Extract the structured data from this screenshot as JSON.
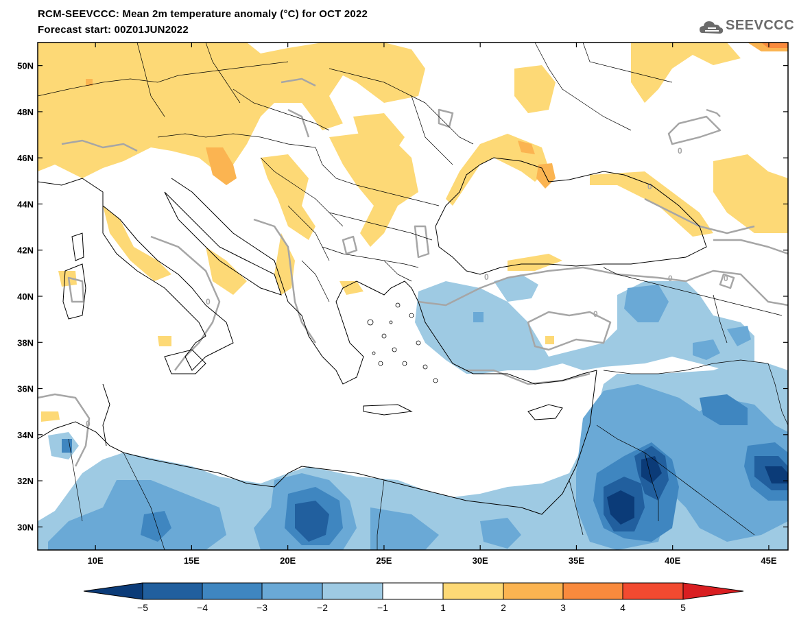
{
  "header": {
    "title": "RCM-SEEVCCC: Mean 2m temperature anomaly (°C) for OCT 2022",
    "subtitle": "Forecast start: 00Z01JUN2022",
    "logo_text": "SEEVCCC"
  },
  "map": {
    "region": "Southeastern Europe and Eastern Mediterranean",
    "lon_range": [
      7,
      46
    ],
    "lat_range": [
      29,
      51
    ],
    "lon_ticks": [
      "10E",
      "15E",
      "20E",
      "25E",
      "30E",
      "35E",
      "40E",
      "45E"
    ],
    "lat_ticks": [
      "50N",
      "48N",
      "46N",
      "44N",
      "42N",
      "40N",
      "38N",
      "36N",
      "34N",
      "32N",
      "30N"
    ],
    "contour_label": "0",
    "colors": {
      "neg5": "#0b3b78",
      "neg4": "#215f9e",
      "neg3": "#3f86c0",
      "neg2": "#6aa9d6",
      "neg1": "#9ecae3",
      "zero": "#ffffff",
      "pos1": "#fdd976",
      "pos2": "#fbb451",
      "pos3": "#f98a3d",
      "pos4": "#f24a30",
      "pos5": "#d91e21",
      "contour": "#a6a6a6"
    }
  },
  "colorbar": {
    "labels": [
      "−5",
      "−4",
      "−3",
      "−2",
      "−1",
      "1",
      "2",
      "3",
      "4",
      "5"
    ]
  }
}
